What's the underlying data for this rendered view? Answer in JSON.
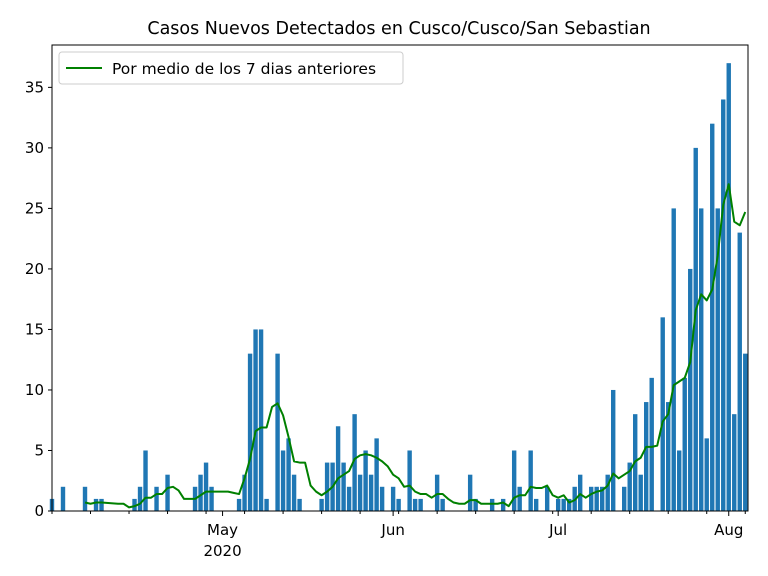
{
  "chart_data": {
    "type": "bar",
    "title": "Casos Nuevos Detectados en Cusco/Cusco/San Sebastian",
    "xlabel": "",
    "ylabel": "",
    "ylim": [
      0,
      38.5
    ],
    "x_range": [
      "2020-03-31",
      "2020-08-04"
    ],
    "yticks": [
      0,
      5,
      10,
      15,
      20,
      25,
      30,
      35
    ],
    "xticks_major": [
      {
        "date": "2020-05-01",
        "label": "May",
        "sublabel": "2020"
      },
      {
        "date": "2020-06-01",
        "label": "Jun",
        "sublabel": ""
      },
      {
        "date": "2020-07-01",
        "label": "Jul",
        "sublabel": ""
      },
      {
        "date": "2020-08-01",
        "label": "Aug",
        "sublabel": ""
      }
    ],
    "xticks_minor_every_days": 7,
    "bar_color": "#1f77b4",
    "line_color": "#008000",
    "legend": {
      "placement": "top-left",
      "entries": [
        {
          "label": "Por medio de los 7 dias anteriores",
          "color": "#008000"
        }
      ]
    },
    "series": [
      {
        "name": "",
        "kind": "bar",
        "points": [
          [
            "2020-03-31",
            1
          ],
          [
            "2020-04-02",
            2
          ],
          [
            "2020-04-06",
            2
          ],
          [
            "2020-04-08",
            1
          ],
          [
            "2020-04-09",
            1
          ],
          [
            "2020-04-15",
            1
          ],
          [
            "2020-04-16",
            2
          ],
          [
            "2020-04-17",
            5
          ],
          [
            "2020-04-19",
            2
          ],
          [
            "2020-04-21",
            3
          ],
          [
            "2020-04-26",
            2
          ],
          [
            "2020-04-27",
            3
          ],
          [
            "2020-04-28",
            4
          ],
          [
            "2020-04-29",
            2
          ],
          [
            "2020-05-04",
            1
          ],
          [
            "2020-05-05",
            3
          ],
          [
            "2020-05-06",
            13
          ],
          [
            "2020-05-07",
            15
          ],
          [
            "2020-05-08",
            15
          ],
          [
            "2020-05-09",
            1
          ],
          [
            "2020-05-11",
            13
          ],
          [
            "2020-05-12",
            5
          ],
          [
            "2020-05-13",
            6
          ],
          [
            "2020-05-14",
            3
          ],
          [
            "2020-05-15",
            1
          ],
          [
            "2020-05-19",
            1
          ],
          [
            "2020-05-20",
            4
          ],
          [
            "2020-05-21",
            4
          ],
          [
            "2020-05-22",
            7
          ],
          [
            "2020-05-23",
            4
          ],
          [
            "2020-05-24",
            2
          ],
          [
            "2020-05-25",
            8
          ],
          [
            "2020-05-26",
            3
          ],
          [
            "2020-05-27",
            5
          ],
          [
            "2020-05-28",
            3
          ],
          [
            "2020-05-29",
            6
          ],
          [
            "2020-05-30",
            2
          ],
          [
            "2020-06-01",
            2
          ],
          [
            "2020-06-02",
            1
          ],
          [
            "2020-06-04",
            5
          ],
          [
            "2020-06-05",
            1
          ],
          [
            "2020-06-06",
            1
          ],
          [
            "2020-06-09",
            3
          ],
          [
            "2020-06-10",
            1
          ],
          [
            "2020-06-15",
            3
          ],
          [
            "2020-06-16",
            1
          ],
          [
            "2020-06-19",
            1
          ],
          [
            "2020-06-21",
            1
          ],
          [
            "2020-06-23",
            5
          ],
          [
            "2020-06-24",
            2
          ],
          [
            "2020-06-26",
            5
          ],
          [
            "2020-06-27",
            1
          ],
          [
            "2020-06-29",
            2
          ],
          [
            "2020-07-01",
            1
          ],
          [
            "2020-07-02",
            1
          ],
          [
            "2020-07-03",
            1
          ],
          [
            "2020-07-04",
            2
          ],
          [
            "2020-07-05",
            3
          ],
          [
            "2020-07-07",
            2
          ],
          [
            "2020-07-08",
            2
          ],
          [
            "2020-07-09",
            2
          ],
          [
            "2020-07-10",
            3
          ],
          [
            "2020-07-11",
            10
          ],
          [
            "2020-07-13",
            2
          ],
          [
            "2020-07-14",
            4
          ],
          [
            "2020-07-15",
            8
          ],
          [
            "2020-07-16",
            3
          ],
          [
            "2020-07-17",
            9
          ],
          [
            "2020-07-18",
            11
          ],
          [
            "2020-07-20",
            16
          ],
          [
            "2020-07-21",
            9
          ],
          [
            "2020-07-22",
            25
          ],
          [
            "2020-07-23",
            5
          ],
          [
            "2020-07-24",
            11
          ],
          [
            "2020-07-25",
            20
          ],
          [
            "2020-07-26",
            30
          ],
          [
            "2020-07-27",
            25
          ],
          [
            "2020-07-28",
            6
          ],
          [
            "2020-07-29",
            32
          ],
          [
            "2020-07-30",
            25
          ],
          [
            "2020-07-31",
            34
          ],
          [
            "2020-08-01",
            37
          ],
          [
            "2020-08-02",
            8
          ],
          [
            "2020-08-03",
            23
          ],
          [
            "2020-08-04",
            13
          ]
        ]
      },
      {
        "name": "Por medio de los 7 dias anteriores",
        "kind": "line",
        "points": [
          [
            "2020-04-06",
            0.7
          ],
          [
            "2020-04-07",
            0.6
          ],
          [
            "2020-04-08",
            0.7
          ],
          [
            "2020-04-09",
            0.7
          ],
          [
            "2020-04-12",
            0.6
          ],
          [
            "2020-04-13",
            0.6
          ],
          [
            "2020-04-14",
            0.3
          ],
          [
            "2020-04-15",
            0.4
          ],
          [
            "2020-04-16",
            0.6
          ],
          [
            "2020-04-17",
            1.1
          ],
          [
            "2020-04-18",
            1.1
          ],
          [
            "2020-04-19",
            1.4
          ],
          [
            "2020-04-20",
            1.4
          ],
          [
            "2020-04-21",
            1.9
          ],
          [
            "2020-04-22",
            2.0
          ],
          [
            "2020-04-23",
            1.7
          ],
          [
            "2020-04-24",
            1.0
          ],
          [
            "2020-04-25",
            1.0
          ],
          [
            "2020-04-26",
            1.0
          ],
          [
            "2020-04-27",
            1.3
          ],
          [
            "2020-04-28",
            1.6
          ],
          [
            "2020-04-29",
            1.6
          ],
          [
            "2020-04-30",
            1.6
          ],
          [
            "2020-05-01",
            1.6
          ],
          [
            "2020-05-02",
            1.6
          ],
          [
            "2020-05-03",
            1.5
          ],
          [
            "2020-05-04",
            1.4
          ],
          [
            "2020-05-05",
            2.7
          ],
          [
            "2020-05-06",
            4.3
          ],
          [
            "2020-05-07",
            6.6
          ],
          [
            "2020-05-08",
            6.9
          ],
          [
            "2020-05-09",
            6.9
          ],
          [
            "2020-05-10",
            8.6
          ],
          [
            "2020-05-11",
            8.9
          ],
          [
            "2020-05-12",
            7.9
          ],
          [
            "2020-05-13",
            6.1
          ],
          [
            "2020-05-14",
            4.1
          ],
          [
            "2020-05-15",
            4.0
          ],
          [
            "2020-05-16",
            4.0
          ],
          [
            "2020-05-17",
            2.1
          ],
          [
            "2020-05-18",
            1.6
          ],
          [
            "2020-05-19",
            1.3
          ],
          [
            "2020-05-20",
            1.6
          ],
          [
            "2020-05-21",
            2.0
          ],
          [
            "2020-05-22",
            2.7
          ],
          [
            "2020-05-23",
            3.0
          ],
          [
            "2020-05-24",
            3.3
          ],
          [
            "2020-05-25",
            4.3
          ],
          [
            "2020-05-26",
            4.6
          ],
          [
            "2020-05-27",
            4.7
          ],
          [
            "2020-05-28",
            4.6
          ],
          [
            "2020-05-29",
            4.4
          ],
          [
            "2020-05-30",
            4.1
          ],
          [
            "2020-05-31",
            3.7
          ],
          [
            "2020-06-01",
            3.0
          ],
          [
            "2020-06-02",
            2.7
          ],
          [
            "2020-06-03",
            2.0
          ],
          [
            "2020-06-04",
            2.1
          ],
          [
            "2020-06-05",
            1.6
          ],
          [
            "2020-06-06",
            1.4
          ],
          [
            "2020-06-07",
            1.4
          ],
          [
            "2020-06-08",
            1.1
          ],
          [
            "2020-06-09",
            1.4
          ],
          [
            "2020-06-10",
            1.4
          ],
          [
            "2020-06-11",
            1.0
          ],
          [
            "2020-06-12",
            0.7
          ],
          [
            "2020-06-13",
            0.6
          ],
          [
            "2020-06-14",
            0.6
          ],
          [
            "2020-06-15",
            0.9
          ],
          [
            "2020-06-16",
            0.9
          ],
          [
            "2020-06-17",
            0.6
          ],
          [
            "2020-06-18",
            0.6
          ],
          [
            "2020-06-19",
            0.6
          ],
          [
            "2020-06-20",
            0.6
          ],
          [
            "2020-06-21",
            0.7
          ],
          [
            "2020-06-22",
            0.4
          ],
          [
            "2020-06-23",
            1.1
          ],
          [
            "2020-06-24",
            1.3
          ],
          [
            "2020-06-25",
            1.3
          ],
          [
            "2020-06-26",
            2.0
          ],
          [
            "2020-06-27",
            1.9
          ],
          [
            "2020-06-28",
            1.9
          ],
          [
            "2020-06-29",
            2.1
          ],
          [
            "2020-06-30",
            1.3
          ],
          [
            "2020-07-01",
            1.1
          ],
          [
            "2020-07-02",
            1.3
          ],
          [
            "2020-07-03",
            0.7
          ],
          [
            "2020-07-04",
            0.9
          ],
          [
            "2020-07-05",
            1.4
          ],
          [
            "2020-07-06",
            1.1
          ],
          [
            "2020-07-07",
            1.4
          ],
          [
            "2020-07-08",
            1.6
          ],
          [
            "2020-07-09",
            1.7
          ],
          [
            "2020-07-10",
            2.1
          ],
          [
            "2020-07-11",
            3.1
          ],
          [
            "2020-07-12",
            2.7
          ],
          [
            "2020-07-13",
            3.0
          ],
          [
            "2020-07-14",
            3.3
          ],
          [
            "2020-07-15",
            4.1
          ],
          [
            "2020-07-16",
            4.4
          ],
          [
            "2020-07-17",
            5.3
          ],
          [
            "2020-07-18",
            5.3
          ],
          [
            "2020-07-19",
            5.4
          ],
          [
            "2020-07-20",
            7.4
          ],
          [
            "2020-07-21",
            8.0
          ],
          [
            "2020-07-22",
            10.4
          ],
          [
            "2020-07-23",
            10.7
          ],
          [
            "2020-07-24",
            11.0
          ],
          [
            "2020-07-25",
            12.3
          ],
          [
            "2020-07-26",
            16.6
          ],
          [
            "2020-07-27",
            17.9
          ],
          [
            "2020-07-28",
            17.4
          ],
          [
            "2020-07-29",
            18.3
          ],
          [
            "2020-07-30",
            21.1
          ],
          [
            "2020-07-31",
            25.3
          ],
          [
            "2020-08-01",
            27.0
          ],
          [
            "2020-08-02",
            23.9
          ],
          [
            "2020-08-03",
            23.6
          ],
          [
            "2020-08-04",
            24.7
          ]
        ]
      }
    ]
  }
}
